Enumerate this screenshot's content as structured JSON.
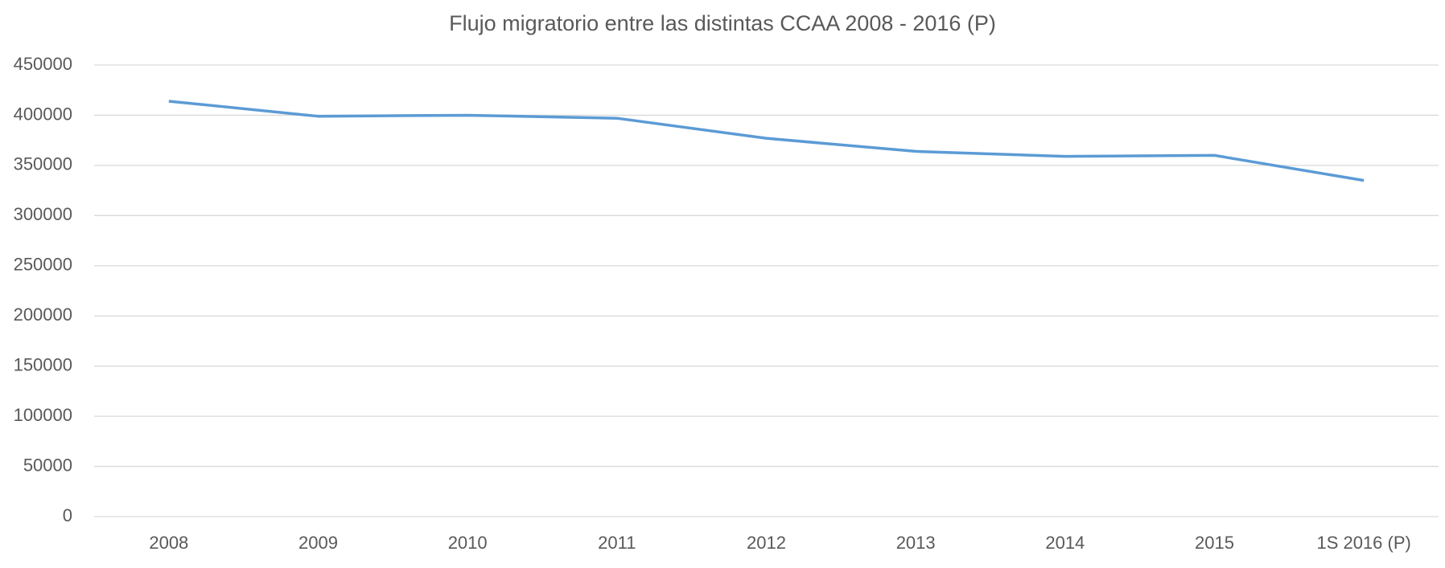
{
  "chart_data": {
    "type": "line",
    "title": "Flujo migratorio entre las distintas CCAA 2008 - 2016 (P)",
    "categories": [
      "2008",
      "2009",
      "2010",
      "2011",
      "2012",
      "2013",
      "2014",
      "2015",
      "1S 2016 (P)"
    ],
    "values": [
      414000,
      399000,
      400000,
      397000,
      377000,
      364000,
      359000,
      360000,
      335000
    ],
    "color": "#5b9bd5",
    "ylim": [
      0,
      450000
    ],
    "yticks": [
      0,
      50000,
      100000,
      150000,
      200000,
      250000,
      300000,
      350000,
      400000,
      450000
    ],
    "grid": true
  }
}
